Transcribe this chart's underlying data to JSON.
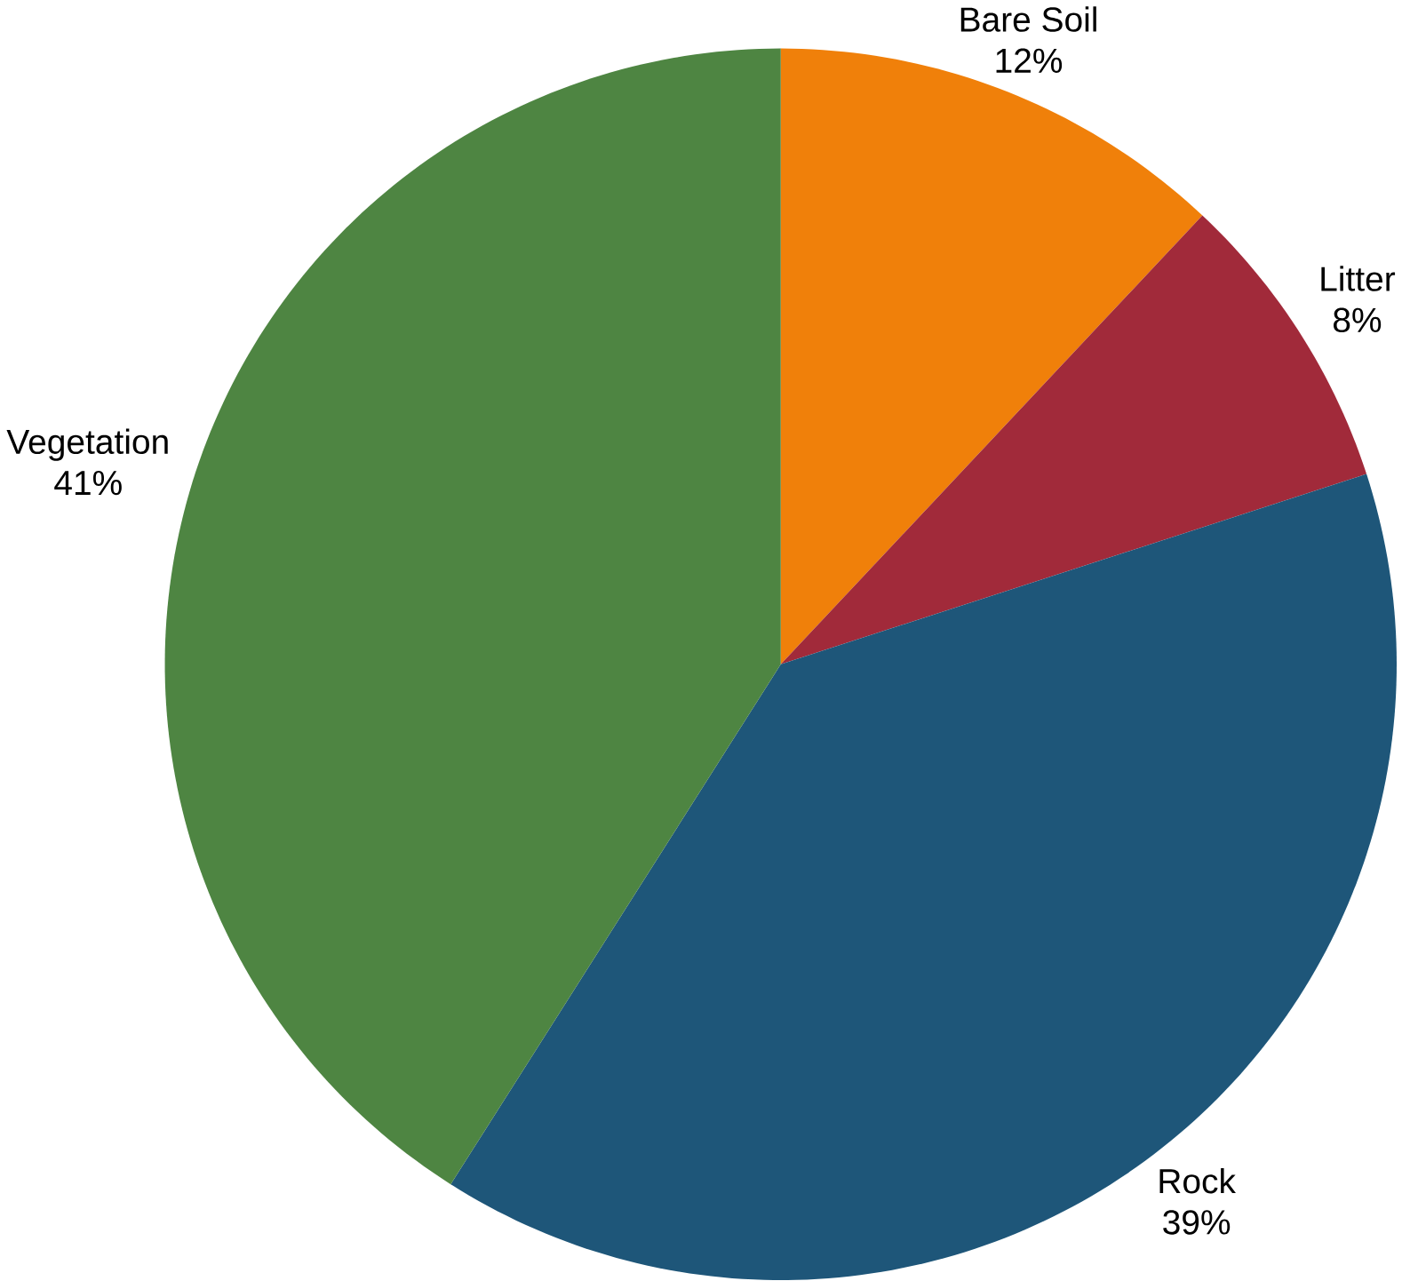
{
  "chart_data": {
    "type": "pie",
    "categories": [
      "Bare Soil",
      "Litter",
      "Rock",
      "Vegetation"
    ],
    "values": [
      12,
      8,
      39,
      41
    ],
    "colors": [
      "#f0800a",
      "#a12a3a",
      "#1e5679",
      "#4e8542"
    ],
    "value_labels": [
      "12%",
      "8%",
      "39%",
      "41%"
    ]
  }
}
